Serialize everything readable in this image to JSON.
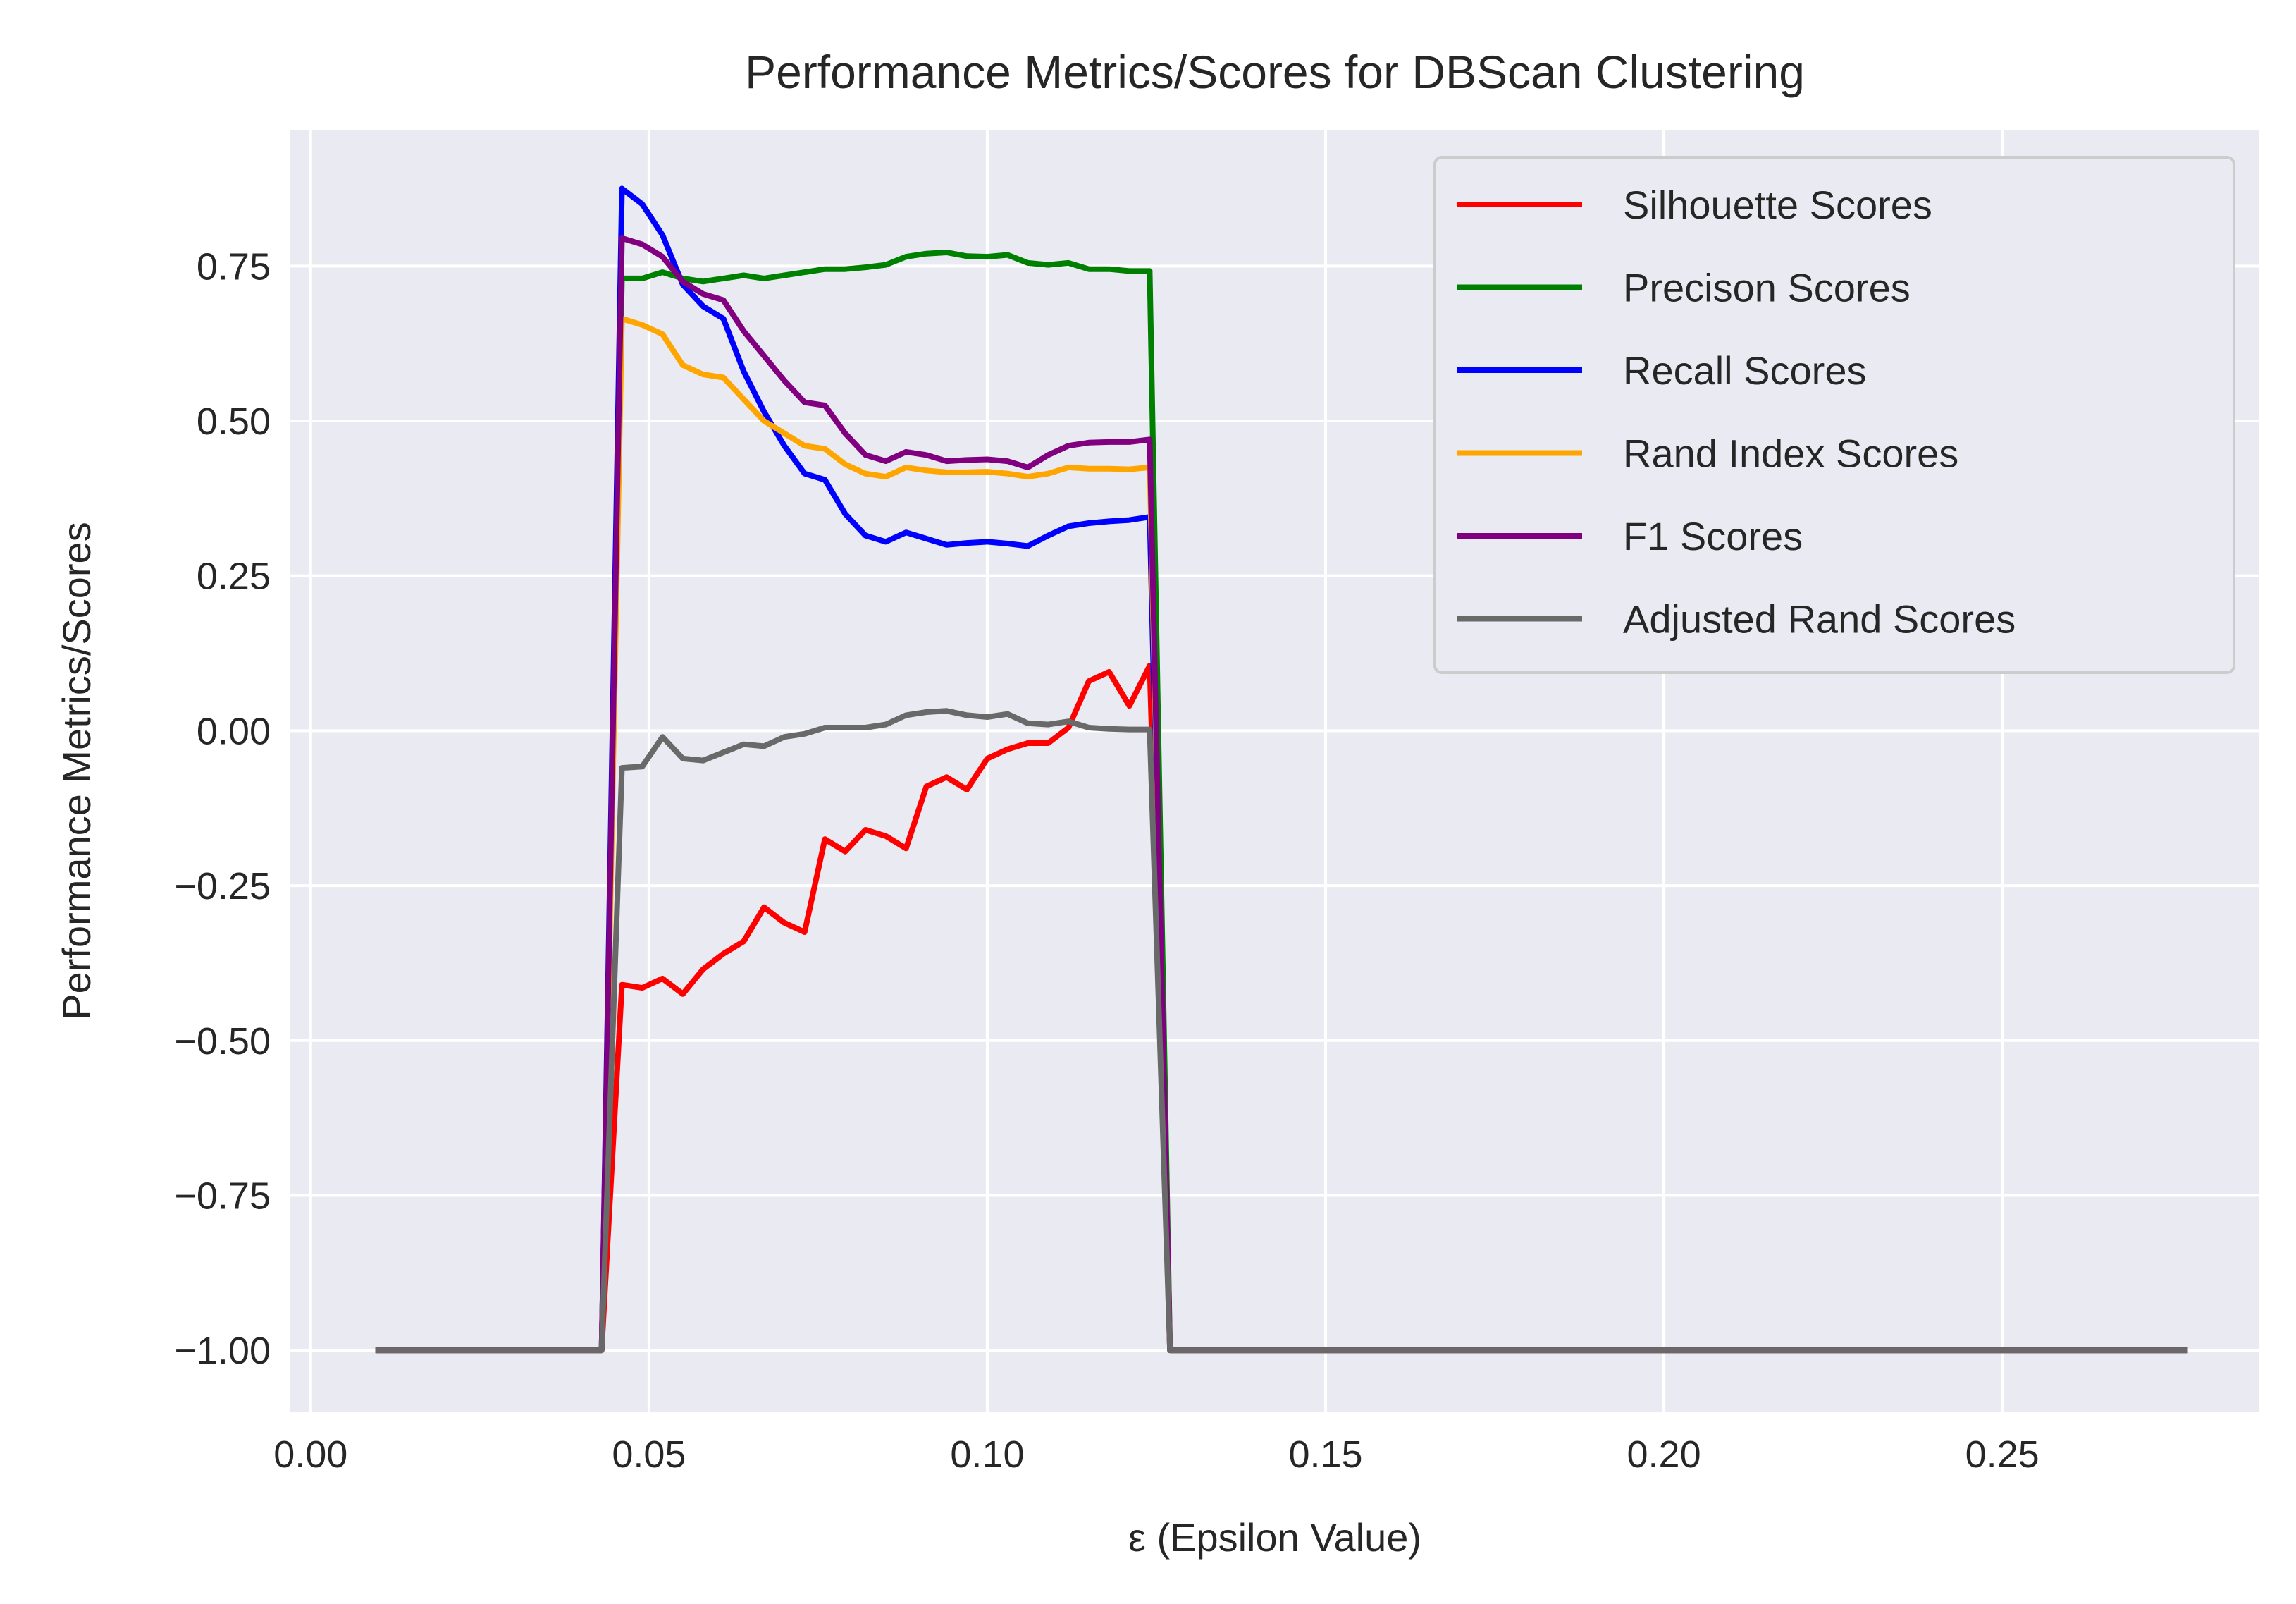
{
  "chart_data": {
    "type": "line",
    "title": "Performance Metrics/Scores for DBScan Clustering",
    "xlabel": "ε (Epsilon Value)",
    "ylabel": "Performance Metrics/Scores",
    "xlim": [
      -0.003,
      0.288
    ],
    "ylim": [
      -1.1,
      0.97
    ],
    "xticks": [
      0.0,
      0.05,
      0.1,
      0.15,
      0.2,
      0.25
    ],
    "xtick_labels": [
      "0.00",
      "0.05",
      "0.10",
      "0.15",
      "0.20",
      "0.25"
    ],
    "yticks": [
      -1.0,
      -0.75,
      -0.5,
      -0.25,
      0.0,
      0.25,
      0.5,
      0.75
    ],
    "ytick_labels": [
      "−1.00",
      "−0.75",
      "−0.50",
      "−0.25",
      "0.00",
      "0.25",
      "0.50",
      "0.75"
    ],
    "grid": true,
    "background": "#eaeaf2",
    "legend_position": "top-right",
    "series": [
      {
        "name": "Silhouette Scores",
        "color": "#ff0000",
        "points": [
          [
            0.01,
            -1
          ],
          [
            0.02,
            -1
          ],
          [
            0.03,
            -1
          ],
          [
            0.04,
            -1
          ],
          [
            0.043,
            -1
          ],
          [
            0.046,
            -0.41
          ],
          [
            0.049,
            -0.415
          ],
          [
            0.052,
            -0.4
          ],
          [
            0.055,
            -0.425
          ],
          [
            0.058,
            -0.385
          ],
          [
            0.061,
            -0.36
          ],
          [
            0.064,
            -0.34
          ],
          [
            0.067,
            -0.285
          ],
          [
            0.07,
            -0.31
          ],
          [
            0.073,
            -0.325
          ],
          [
            0.076,
            -0.175
          ],
          [
            0.079,
            -0.195
          ],
          [
            0.082,
            -0.16
          ],
          [
            0.085,
            -0.17
          ],
          [
            0.088,
            -0.19
          ],
          [
            0.091,
            -0.09
          ],
          [
            0.094,
            -0.075
          ],
          [
            0.097,
            -0.095
          ],
          [
            0.1,
            -0.045
          ],
          [
            0.103,
            -0.03
          ],
          [
            0.106,
            -0.02
          ],
          [
            0.109,
            -0.02
          ],
          [
            0.112,
            0.005
          ],
          [
            0.115,
            0.08
          ],
          [
            0.118,
            0.095
          ],
          [
            0.121,
            0.04
          ],
          [
            0.124,
            0.105
          ],
          [
            0.127,
            -1
          ],
          [
            0.15,
            -1
          ],
          [
            0.2,
            -1
          ],
          [
            0.25,
            -1
          ],
          [
            0.277,
            -1
          ]
        ]
      },
      {
        "name": "Precison Scores",
        "color": "#008000",
        "points": [
          [
            0.01,
            -1
          ],
          [
            0.02,
            -1
          ],
          [
            0.03,
            -1
          ],
          [
            0.04,
            -1
          ],
          [
            0.043,
            -1
          ],
          [
            0.046,
            0.73
          ],
          [
            0.049,
            0.73
          ],
          [
            0.052,
            0.74
          ],
          [
            0.055,
            0.73
          ],
          [
            0.058,
            0.725
          ],
          [
            0.061,
            0.73
          ],
          [
            0.064,
            0.735
          ],
          [
            0.067,
            0.73
          ],
          [
            0.07,
            0.735
          ],
          [
            0.073,
            0.74
          ],
          [
            0.076,
            0.745
          ],
          [
            0.079,
            0.745
          ],
          [
            0.082,
            0.748
          ],
          [
            0.085,
            0.752
          ],
          [
            0.088,
            0.765
          ],
          [
            0.091,
            0.77
          ],
          [
            0.094,
            0.772
          ],
          [
            0.097,
            0.766
          ],
          [
            0.1,
            0.765
          ],
          [
            0.103,
            0.768
          ],
          [
            0.106,
            0.755
          ],
          [
            0.109,
            0.752
          ],
          [
            0.112,
            0.755
          ],
          [
            0.115,
            0.745
          ],
          [
            0.118,
            0.745
          ],
          [
            0.121,
            0.742
          ],
          [
            0.124,
            0.742
          ],
          [
            0.127,
            -1
          ],
          [
            0.15,
            -1
          ],
          [
            0.2,
            -1
          ],
          [
            0.25,
            -1
          ],
          [
            0.277,
            -1
          ]
        ]
      },
      {
        "name": "Recall Scores",
        "color": "#0000ff",
        "points": [
          [
            0.01,
            -1
          ],
          [
            0.02,
            -1
          ],
          [
            0.03,
            -1
          ],
          [
            0.04,
            -1
          ],
          [
            0.043,
            -1
          ],
          [
            0.046,
            0.875
          ],
          [
            0.049,
            0.85
          ],
          [
            0.052,
            0.8
          ],
          [
            0.055,
            0.72
          ],
          [
            0.058,
            0.685
          ],
          [
            0.061,
            0.665
          ],
          [
            0.064,
            0.58
          ],
          [
            0.067,
            0.515
          ],
          [
            0.07,
            0.46
          ],
          [
            0.073,
            0.415
          ],
          [
            0.076,
            0.405
          ],
          [
            0.079,
            0.35
          ],
          [
            0.082,
            0.315
          ],
          [
            0.085,
            0.305
          ],
          [
            0.088,
            0.32
          ],
          [
            0.091,
            0.31
          ],
          [
            0.094,
            0.3
          ],
          [
            0.097,
            0.303
          ],
          [
            0.1,
            0.305
          ],
          [
            0.103,
            0.302
          ],
          [
            0.106,
            0.298
          ],
          [
            0.109,
            0.315
          ],
          [
            0.112,
            0.33
          ],
          [
            0.115,
            0.335
          ],
          [
            0.118,
            0.338
          ],
          [
            0.121,
            0.34
          ],
          [
            0.124,
            0.345
          ],
          [
            0.127,
            -1
          ],
          [
            0.15,
            -1
          ],
          [
            0.2,
            -1
          ],
          [
            0.25,
            -1
          ],
          [
            0.277,
            -1
          ]
        ]
      },
      {
        "name": "Rand Index Scores",
        "color": "#ffa500",
        "points": [
          [
            0.01,
            -1
          ],
          [
            0.02,
            -1
          ],
          [
            0.03,
            -1
          ],
          [
            0.04,
            -1
          ],
          [
            0.043,
            -1
          ],
          [
            0.046,
            0.665
          ],
          [
            0.049,
            0.655
          ],
          [
            0.052,
            0.64
          ],
          [
            0.055,
            0.59
          ],
          [
            0.058,
            0.575
          ],
          [
            0.061,
            0.57
          ],
          [
            0.064,
            0.535
          ],
          [
            0.067,
            0.5
          ],
          [
            0.07,
            0.48
          ],
          [
            0.073,
            0.46
          ],
          [
            0.076,
            0.455
          ],
          [
            0.079,
            0.43
          ],
          [
            0.082,
            0.415
          ],
          [
            0.085,
            0.41
          ],
          [
            0.088,
            0.425
          ],
          [
            0.091,
            0.42
          ],
          [
            0.094,
            0.417
          ],
          [
            0.097,
            0.417
          ],
          [
            0.1,
            0.418
          ],
          [
            0.103,
            0.415
          ],
          [
            0.106,
            0.41
          ],
          [
            0.109,
            0.415
          ],
          [
            0.112,
            0.425
          ],
          [
            0.115,
            0.423
          ],
          [
            0.118,
            0.423
          ],
          [
            0.121,
            0.422
          ],
          [
            0.124,
            0.425
          ],
          [
            0.127,
            -1
          ],
          [
            0.15,
            -1
          ],
          [
            0.2,
            -1
          ],
          [
            0.25,
            -1
          ],
          [
            0.277,
            -1
          ]
        ]
      },
      {
        "name": "F1 Scores",
        "color": "#800080",
        "points": [
          [
            0.01,
            -1
          ],
          [
            0.02,
            -1
          ],
          [
            0.03,
            -1
          ],
          [
            0.04,
            -1
          ],
          [
            0.043,
            -1
          ],
          [
            0.046,
            0.795
          ],
          [
            0.049,
            0.785
          ],
          [
            0.052,
            0.765
          ],
          [
            0.055,
            0.725
          ],
          [
            0.058,
            0.705
          ],
          [
            0.061,
            0.695
          ],
          [
            0.064,
            0.645
          ],
          [
            0.067,
            0.605
          ],
          [
            0.07,
            0.565
          ],
          [
            0.073,
            0.53
          ],
          [
            0.076,
            0.525
          ],
          [
            0.079,
            0.48
          ],
          [
            0.082,
            0.445
          ],
          [
            0.085,
            0.435
          ],
          [
            0.088,
            0.45
          ],
          [
            0.091,
            0.445
          ],
          [
            0.094,
            0.435
          ],
          [
            0.097,
            0.437
          ],
          [
            0.1,
            0.438
          ],
          [
            0.103,
            0.435
          ],
          [
            0.106,
            0.425
          ],
          [
            0.109,
            0.445
          ],
          [
            0.112,
            0.46
          ],
          [
            0.115,
            0.465
          ],
          [
            0.118,
            0.466
          ],
          [
            0.121,
            0.466
          ],
          [
            0.124,
            0.47
          ],
          [
            0.127,
            -1
          ],
          [
            0.15,
            -1
          ],
          [
            0.2,
            -1
          ],
          [
            0.25,
            -1
          ],
          [
            0.277,
            -1
          ]
        ]
      },
      {
        "name": "Adjusted Rand Scores",
        "color": "#696969",
        "points": [
          [
            0.01,
            -1
          ],
          [
            0.02,
            -1
          ],
          [
            0.03,
            -1
          ],
          [
            0.04,
            -1
          ],
          [
            0.043,
            -1
          ],
          [
            0.046,
            -0.06
          ],
          [
            0.049,
            -0.058
          ],
          [
            0.052,
            -0.01
          ],
          [
            0.055,
            -0.045
          ],
          [
            0.058,
            -0.048
          ],
          [
            0.061,
            -0.035
          ],
          [
            0.064,
            -0.022
          ],
          [
            0.067,
            -0.025
          ],
          [
            0.07,
            -0.01
          ],
          [
            0.073,
            -0.005
          ],
          [
            0.076,
            0.005
          ],
          [
            0.079,
            0.005
          ],
          [
            0.082,
            0.005
          ],
          [
            0.085,
            0.01
          ],
          [
            0.088,
            0.025
          ],
          [
            0.091,
            0.03
          ],
          [
            0.094,
            0.032
          ],
          [
            0.097,
            0.025
          ],
          [
            0.1,
            0.022
          ],
          [
            0.103,
            0.027
          ],
          [
            0.106,
            0.012
          ],
          [
            0.109,
            0.01
          ],
          [
            0.112,
            0.015
          ],
          [
            0.115,
            0.005
          ],
          [
            0.118,
            0.003
          ],
          [
            0.121,
            0.002
          ],
          [
            0.124,
            0.002
          ],
          [
            0.127,
            -1
          ],
          [
            0.15,
            -1
          ],
          [
            0.2,
            -1
          ],
          [
            0.25,
            -1
          ],
          [
            0.277,
            -1
          ]
        ]
      }
    ]
  }
}
